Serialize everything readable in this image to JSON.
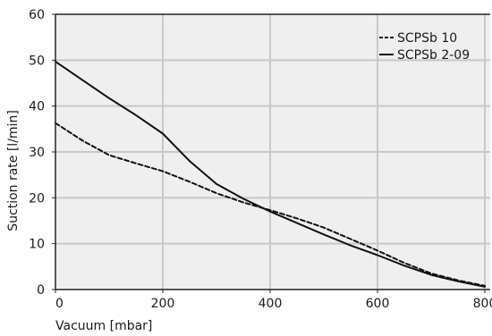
{
  "chart_data": {
    "type": "line",
    "title": "",
    "xlabel": "Vacuum [mbar]",
    "ylabel": "Suction rate [l/min]",
    "xlim": [
      0,
      810
    ],
    "ylim": [
      0,
      60
    ],
    "xticks": [
      "0",
      "200",
      "400",
      "600",
      "800"
    ],
    "yticks": [
      "0",
      "10",
      "20",
      "30",
      "40",
      "50",
      "60"
    ],
    "grid": true,
    "legend_position": "top-right",
    "colors": {
      "plot_background": "#efefef",
      "grid": "#c8c8c8",
      "line": "#111111",
      "axis": "#222222"
    },
    "series": [
      {
        "name": "SCPSb 10",
        "line_style": "dashed",
        "points": [
          [
            0,
            36.3
          ],
          [
            50,
            32.5
          ],
          [
            100,
            29.3
          ],
          [
            150,
            27.5
          ],
          [
            200,
            25.8
          ],
          [
            250,
            23.5
          ],
          [
            300,
            21.0
          ],
          [
            350,
            19.0
          ],
          [
            400,
            17.3
          ],
          [
            450,
            15.5
          ],
          [
            500,
            13.5
          ],
          [
            550,
            11.0
          ],
          [
            600,
            8.5
          ],
          [
            650,
            5.8
          ],
          [
            700,
            3.5
          ],
          [
            750,
            2.0
          ],
          [
            800,
            0.8
          ]
        ]
      },
      {
        "name": "SCPSb 2-09",
        "line_style": "solid",
        "points": [
          [
            0,
            49.7
          ],
          [
            50,
            45.7
          ],
          [
            100,
            41.7
          ],
          [
            150,
            38.0
          ],
          [
            200,
            34.0
          ],
          [
            250,
            28.0
          ],
          [
            300,
            23.0
          ],
          [
            350,
            19.8
          ],
          [
            400,
            17.0
          ],
          [
            450,
            14.5
          ],
          [
            500,
            12.0
          ],
          [
            550,
            9.6
          ],
          [
            600,
            7.5
          ],
          [
            650,
            5.2
          ],
          [
            700,
            3.2
          ],
          [
            750,
            1.8
          ],
          [
            800,
            0.6
          ]
        ]
      }
    ]
  }
}
